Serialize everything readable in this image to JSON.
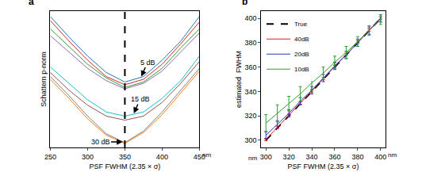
{
  "chart_data": [
    {
      "type": "line",
      "panel": "a",
      "x_label": "PSF FWHM (2.35 × σ)",
      "y_label": "Schattern p-norm",
      "x_unit": "nm",
      "xlim": [
        250,
        450
      ],
      "xticks": [
        250,
        300,
        350,
        400,
        450
      ],
      "ylim": [
        0,
        10
      ],
      "tick_labels": "x",
      "grid": false,
      "series": [
        {
          "color": "#1f77b4",
          "x": [
            250,
            275,
            300,
            325,
            350,
            375,
            400,
            425,
            450
          ],
          "values": [
            9.6,
            8.1,
            6.7,
            5.5,
            4.8,
            5.2,
            6.4,
            7.8,
            9.6
          ]
        },
        {
          "color": "#2ca02c",
          "x": [
            250,
            275,
            300,
            325,
            350,
            375,
            400,
            425,
            450
          ],
          "values": [
            8.7,
            7.4,
            6.1,
            5.1,
            4.4,
            4.8,
            5.8,
            7.3,
            8.7
          ]
        },
        {
          "color": "#d62728",
          "x": [
            250,
            275,
            300,
            325,
            350,
            375,
            400,
            425,
            450
          ],
          "values": [
            9.3,
            7.8,
            6.4,
            5.2,
            4.6,
            5.0,
            6.1,
            7.6,
            9.2
          ]
        },
        {
          "color": "#9467bd",
          "x": [
            250,
            275,
            300,
            325,
            350,
            375,
            400,
            425,
            450
          ],
          "values": [
            8.2,
            7.0,
            5.8,
            4.9,
            4.3,
            4.7,
            5.6,
            7.0,
            8.4
          ]
        },
        {
          "color": "#17becf",
          "x": [
            250,
            275,
            300,
            325,
            350,
            375,
            400,
            425,
            450
          ],
          "values": [
            5.9,
            4.7,
            3.5,
            2.6,
            2.3,
            2.6,
            3.6,
            4.9,
            6.7
          ]
        },
        {
          "color": "#8c564b",
          "x": [
            250,
            275,
            300,
            325,
            350,
            375,
            400,
            425,
            450
          ],
          "values": [
            5.5,
            4.2,
            3.1,
            2.3,
            2.0,
            2.3,
            3.3,
            4.7,
            6.3
          ]
        },
        {
          "color": "#7f7f7f",
          "x": [
            250,
            275,
            300,
            325,
            350,
            375,
            400,
            425,
            450
          ],
          "values": [
            5.2,
            3.8,
            2.3,
            1.0,
            0.35,
            1.2,
            2.6,
            4.2,
            5.8
          ]
        },
        {
          "color": "#ff7f0e",
          "x": [
            250,
            275,
            300,
            325,
            350,
            375,
            400,
            425,
            450
          ],
          "values": [
            5.0,
            3.6,
            2.1,
            0.9,
            0.3,
            1.1,
            2.4,
            4.0,
            5.6
          ]
        },
        {
          "color": "#000000",
          "line_style": "dashed",
          "x": [
            350,
            350
          ],
          "values": [
            0,
            10
          ]
        }
      ],
      "annotations": [
        {
          "text": "5 dB",
          "x": 372,
          "y": 5.2
        },
        {
          "text": "15 dB",
          "x": 362,
          "y": 2.5
        },
        {
          "text": "30 dB",
          "x": 347,
          "y": 0.4
        }
      ]
    },
    {
      "type": "line",
      "panel": "b",
      "x_label": "PSF FWHM (2.35 × σ)",
      "y_label": "estimated  FWHM",
      "x_unit": "nm",
      "y_unit": "nm",
      "xlim": [
        296,
        404
      ],
      "xticks": [
        300,
        320,
        340,
        360,
        380,
        400
      ],
      "ylim": [
        294,
        406
      ],
      "yticks": [
        300,
        320,
        340,
        360,
        380,
        400
      ],
      "grid": false,
      "legend": "upper left",
      "series": [
        {
          "name": "True",
          "color": "#000000",
          "line_style": "dashed",
          "x": [
            300,
            310,
            320,
            330,
            340,
            350,
            360,
            370,
            380,
            390,
            400
          ],
          "values": [
            300,
            310,
            320,
            330,
            340,
            350,
            360,
            370,
            380,
            390,
            400
          ]
        },
        {
          "name": "40dB",
          "color": "#e41a1c",
          "x": [
            300,
            310,
            320,
            330,
            340,
            350,
            360,
            370,
            380,
            390,
            400
          ],
          "values": [
            300.5,
            310.5,
            320.5,
            330.5,
            340.5,
            350.5,
            360.5,
            370.5,
            380.5,
            390.5,
            400.3
          ],
          "errors": [
            1,
            1,
            1,
            1,
            1,
            1,
            1,
            1,
            1,
            1,
            1
          ]
        },
        {
          "name": "20dB",
          "color": "#1f3fbf",
          "x": [
            300,
            310,
            320,
            330,
            340,
            350,
            360,
            370,
            380,
            390,
            400
          ],
          "values": [
            304,
            313,
            322,
            332,
            341,
            351,
            361,
            370,
            380,
            390,
            400
          ],
          "errors": [
            3,
            3,
            3,
            3,
            3,
            3,
            3,
            3,
            3,
            3,
            3
          ]
        },
        {
          "name": "10dB",
          "color": "#2ca02c",
          "x": [
            300,
            310,
            320,
            330,
            340,
            350,
            360,
            370,
            380,
            390,
            400
          ],
          "values": [
            314,
            322,
            330,
            338,
            347,
            355,
            364,
            372,
            381,
            390,
            399
          ],
          "errors": [
            7,
            7,
            6,
            6,
            6,
            5,
            5,
            5,
            4,
            4,
            4
          ]
        }
      ]
    }
  ]
}
